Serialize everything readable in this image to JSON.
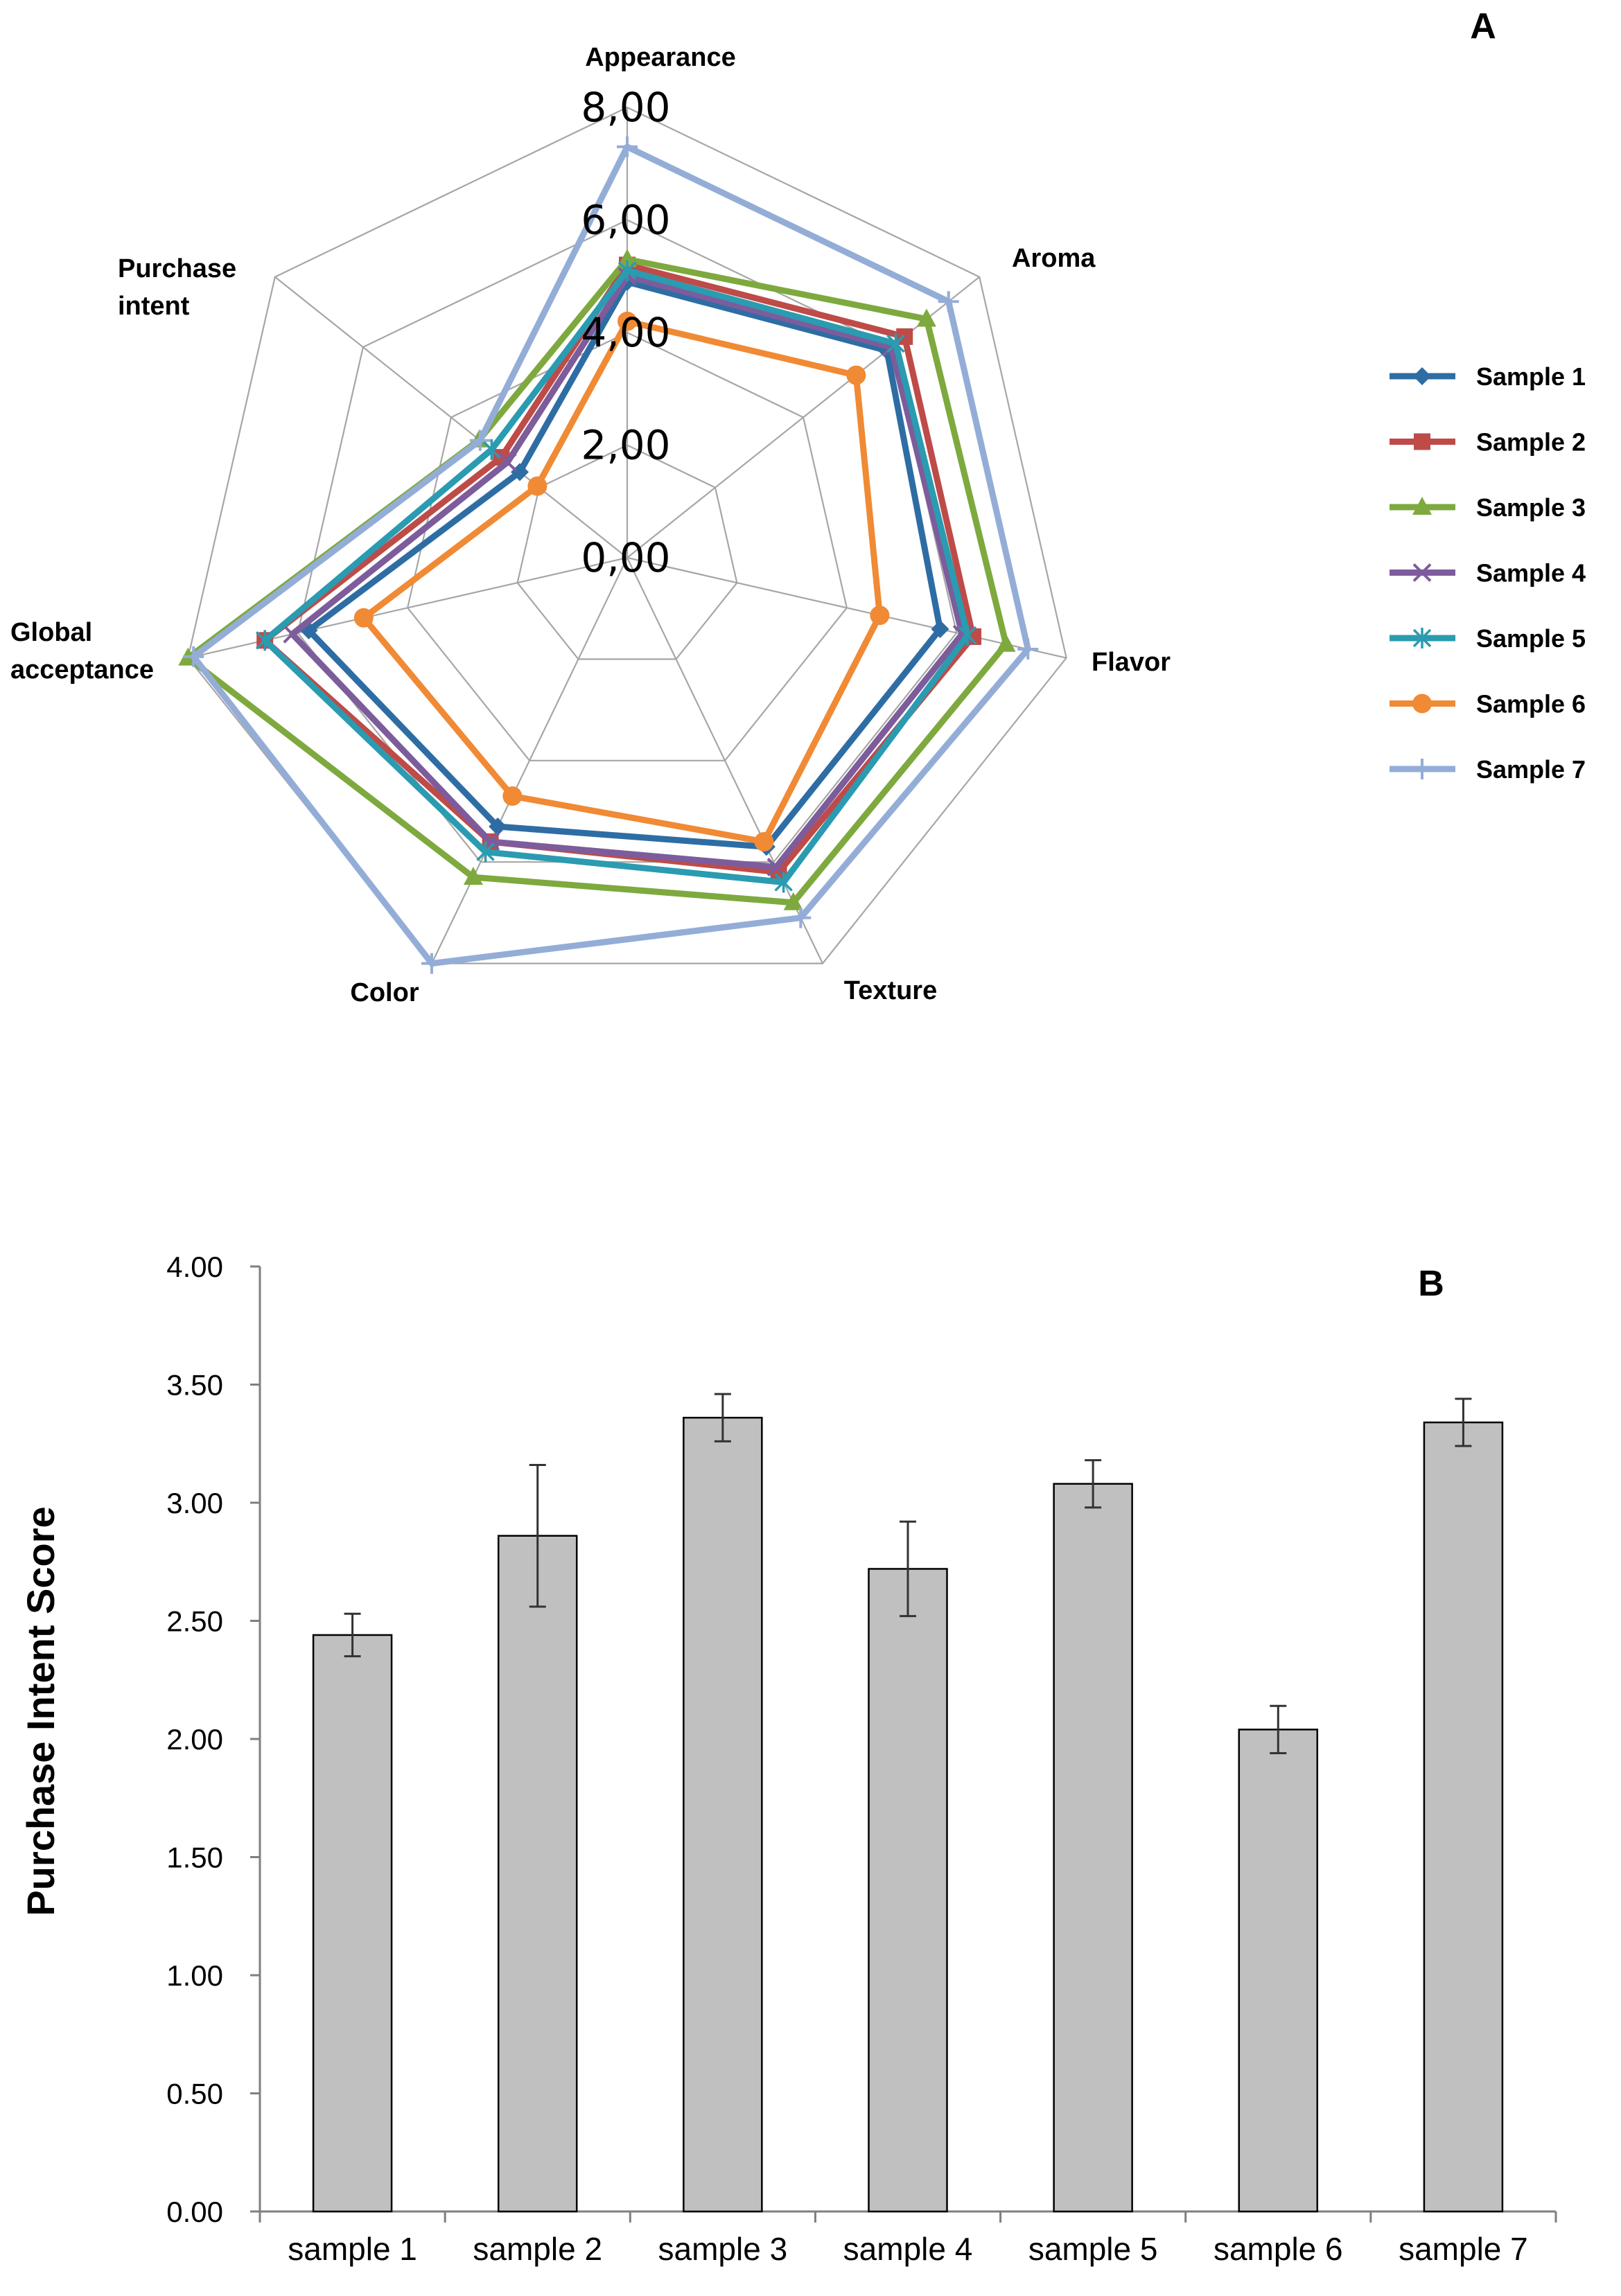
{
  "chart_data": [
    {
      "type": "radar",
      "panel_label": "A",
      "axes": [
        "Appearance",
        "Aroma",
        "Flavor",
        "Texture",
        "Color",
        "Global acceptance",
        "Purchase intent"
      ],
      "axis_display": [
        [
          "Appearance"
        ],
        [
          "Aroma"
        ],
        [
          "Flavor"
        ],
        [
          "Texture"
        ],
        [
          "Color"
        ],
        [
          "Global",
          "acceptance"
        ],
        [
          "Purchase",
          "intent"
        ]
      ],
      "rlim": [
        0,
        8
      ],
      "ticks": [
        "0,00",
        "2,00",
        "4,00",
        "6,00",
        "8,00"
      ],
      "tick_values": [
        0,
        2,
        4,
        6,
        8
      ],
      "series": [
        {
          "name": "Sample 1",
          "color": "#2E6DA4",
          "marker": "diamond",
          "values": [
            4.9,
            5.9,
            5.7,
            5.7,
            5.3,
            5.8,
            2.44
          ]
        },
        {
          "name": "Sample 2",
          "color": "#BE4B48",
          "marker": "square",
          "values": [
            5.2,
            6.3,
            6.3,
            6.2,
            5.6,
            6.6,
            2.86
          ]
        },
        {
          "name": "Sample 3",
          "color": "#7EA93E",
          "marker": "triangle",
          "values": [
            5.3,
            6.8,
            6.9,
            6.8,
            6.3,
            8.0,
            3.36
          ]
        },
        {
          "name": "Sample 4",
          "color": "#7D5C9C",
          "marker": "x",
          "values": [
            5.0,
            6.0,
            6.1,
            6.1,
            5.6,
            6.1,
            2.72
          ]
        },
        {
          "name": "Sample 5",
          "color": "#2A9BB1",
          "marker": "star",
          "values": [
            5.1,
            6.1,
            6.2,
            6.4,
            5.8,
            6.6,
            3.08
          ]
        },
        {
          "name": "Sample 6",
          "color": "#F08A34",
          "marker": "circle",
          "values": [
            4.2,
            5.2,
            4.6,
            5.6,
            4.7,
            4.8,
            2.04
          ]
        },
        {
          "name": "Sample 7",
          "color": "#94ADD7",
          "marker": "plus",
          "values": [
            7.3,
            7.3,
            7.3,
            7.1,
            8.0,
            7.9,
            3.34
          ]
        }
      ]
    },
    {
      "type": "bar",
      "panel_label": "B",
      "categories": [
        "sample 1",
        "sample 2",
        "sample 3",
        "sample 4",
        "sample 5",
        "sample 6",
        "sample 7"
      ],
      "values": [
        2.44,
        2.86,
        3.36,
        2.72,
        3.08,
        2.04,
        3.34
      ],
      "errors": [
        0.09,
        0.3,
        0.1,
        0.2,
        0.1,
        0.1,
        0.1
      ],
      "ylabel": "Purchase Intent Score",
      "xlabel": "",
      "ylim": [
        0,
        4
      ],
      "yticks": [
        "0.00",
        "0.50",
        "1.00",
        "1.50",
        "2.00",
        "2.50",
        "3.00",
        "3.50",
        "4.00"
      ],
      "ytick_values": [
        0,
        0.5,
        1,
        1.5,
        2,
        2.5,
        3,
        3.5,
        4
      ],
      "bar_color": "#C0C0C0"
    }
  ]
}
